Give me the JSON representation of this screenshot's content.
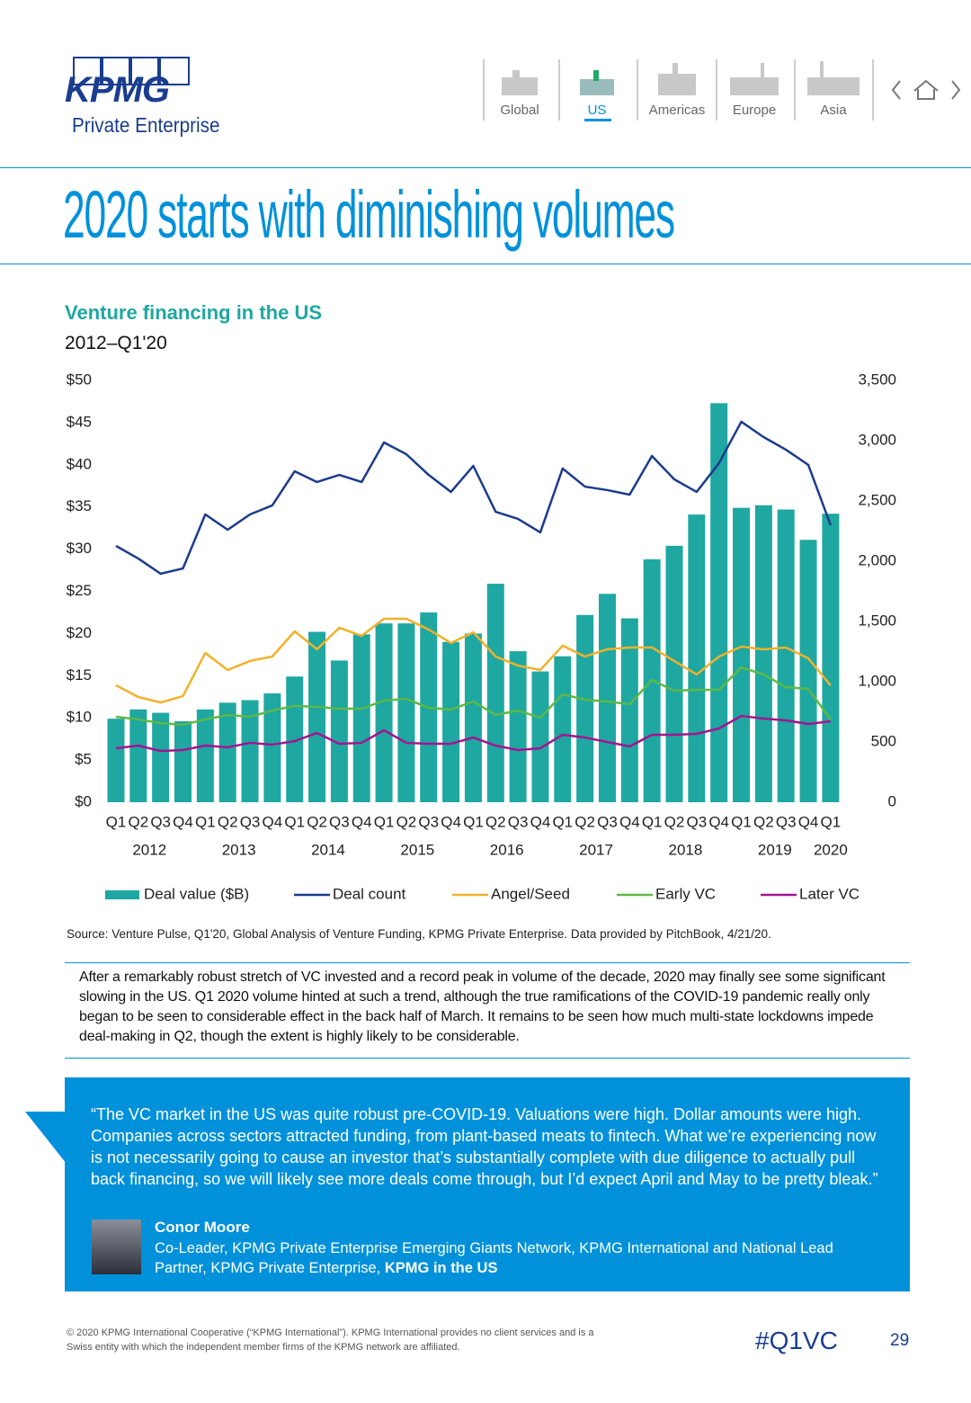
{
  "header": {
    "logo": "KPMG",
    "logo_subtitle": "Private Enterprise",
    "nav": [
      "Global",
      "US",
      "Americas",
      "Europe",
      "Asia"
    ]
  },
  "title": "2020 starts with diminishing volumes",
  "chart_data": {
    "type": "bar",
    "title": "Venture financing in the US",
    "subtitle": "2012–Q1'20",
    "categories": [
      "Q1",
      "Q2",
      "Q3",
      "Q4",
      "Q1",
      "Q2",
      "Q3",
      "Q4",
      "Q1",
      "Q2",
      "Q3",
      "Q4",
      "Q1",
      "Q2",
      "Q3",
      "Q4",
      "Q1",
      "Q2",
      "Q3",
      "Q4",
      "Q1",
      "Q2",
      "Q3",
      "Q4",
      "Q1",
      "Q2",
      "Q3",
      "Q4",
      "Q1",
      "Q2",
      "Q3",
      "Q4",
      "Q1"
    ],
    "year_labels": [
      "2012",
      "2013",
      "2014",
      "2015",
      "2016",
      "2017",
      "2018",
      "2019",
      "2020"
    ],
    "ylim": [
      0,
      50
    ],
    "yticks": [
      {
        "value": 0,
        "label": "$0"
      },
      {
        "value": 5,
        "label": "$5"
      },
      {
        "value": 10,
        "label": "$10"
      },
      {
        "value": 15,
        "label": "$15"
      },
      {
        "value": 20,
        "label": "$20"
      },
      {
        "value": 25,
        "label": "$25"
      },
      {
        "value": 30,
        "label": "$30"
      },
      {
        "value": 35,
        "label": "$35"
      },
      {
        "value": 40,
        "label": "$40"
      },
      {
        "value": 45,
        "label": "$45"
      },
      {
        "value": 50,
        "label": "$50"
      }
    ],
    "y2lim": [
      0,
      3500
    ],
    "y2ticks": [
      0,
      500,
      {
        "value": 1000,
        "label": "1,000"
      },
      {
        "value": 1500,
        "label": "1,500"
      },
      {
        "value": 2000,
        "label": "2,000"
      },
      {
        "value": 2500,
        "label": "2,500"
      },
      {
        "value": 3000,
        "label": "3,000"
      },
      {
        "value": 3500,
        "label": "3,500"
      }
    ],
    "grid": false,
    "series": [
      {
        "name": "Deal value ($B)",
        "type": "bar",
        "color": "#1fa7a2",
        "values": [
          9.9,
          11.0,
          10.6,
          9.6,
          11.0,
          11.8,
          12.1,
          12.9,
          14.9,
          20.2,
          16.8,
          19.9,
          21.2,
          21.2,
          22.5,
          19.0,
          20.0,
          25.9,
          17.9,
          15.5,
          17.3,
          22.2,
          24.7,
          21.8,
          28.8,
          30.4,
          34.1,
          47.3,
          34.9,
          35.2,
          34.7,
          31.1,
          34.2
        ]
      },
      {
        "name": "Deal count",
        "type": "line",
        "axis": "y2",
        "color": "#1c3b8c",
        "values": [
          2127,
          2022,
          1896,
          1940,
          2388,
          2261,
          2388,
          2463,
          2746,
          2657,
          2716,
          2657,
          2985,
          2888,
          2716,
          2575,
          2791,
          2410,
          2351,
          2239,
          2769,
          2619,
          2590,
          2552,
          2873,
          2679,
          2575,
          2813,
          3157,
          3030,
          2925,
          2799,
          2299
        ]
      },
      {
        "name": "Angel/Seed",
        "type": "line",
        "axis": "y2",
        "color": "#f0b12a",
        "values": [
          970,
          873,
          828,
          881,
          1239,
          1097,
          1172,
          1209,
          1418,
          1269,
          1448,
          1381,
          1522,
          1522,
          1433,
          1321,
          1410,
          1209,
          1134,
          1097,
          1299,
          1209,
          1269,
          1284,
          1284,
          1172,
          1060,
          1209,
          1291,
          1269,
          1284,
          1194,
          970
        ]
      },
      {
        "name": "Early VC",
        "type": "line",
        "axis": "y2",
        "color": "#5db848",
        "values": [
          709,
          687,
          657,
          642,
          687,
          724,
          709,
          761,
          799,
          791,
          776,
          776,
          843,
          858,
          784,
          769,
          836,
          724,
          761,
          702,
          896,
          851,
          836,
          813,
          1015,
          925,
          933,
          933,
          1119,
          1060,
          955,
          940,
          687
        ]
      },
      {
        "name": "Later VC",
        "type": "line",
        "axis": "y2",
        "color": "#a3158f",
        "values": [
          448,
          470,
          425,
          433,
          470,
          455,
          493,
          478,
          507,
          575,
          485,
          493,
          597,
          493,
          485,
          485,
          537,
          470,
          433,
          448,
          560,
          537,
          500,
          463,
          560,
          560,
          567,
          612,
          716,
          694,
          679,
          649,
          672
        ]
      }
    ]
  },
  "source": "Source: Venture Pulse, Q1'20, Global Analysis of Venture Funding, KPMG Private Enterprise. Data provided by PitchBook, 4/21/20.",
  "body": "After a remarkably robust stretch of VC invested and a record peak in volume of the decade, 2020 may finally see some significant slowing in the US. Q1 2020 volume hinted at such a trend, although the true ramifications of the COVID-19 pandemic really only began to be seen to considerable effect in the back half of March. It remains to be seen how much multi-state lockdowns impede deal-making in Q2, though the extent is highly likely to be considerable.",
  "quote": {
    "text": "“The VC market in the US was quite robust pre-COVID-19. Valuations were high. Dollar amounts were high. Companies across sectors attracted funding, from plant-based meats to fintech. What we’re experiencing now is not necessarily going to cause an investor that’s substantially complete with due diligence to actually pull back financing, so we will likely see more deals come through, but I’d expect April and May to be pretty bleak.”",
    "name": "Conor Moore",
    "role": "Co-Leader, KPMG Private Enterprise Emerging Giants Network, KPMG International and National Lead Partner, KPMG Private Enterprise,",
    "role_org": "KPMG in the US"
  },
  "footer": {
    "copyright": "© 2020 KPMG International Cooperative (“KPMG International”). KPMG International provides no client services and is a Swiss entity with which the independent member firms of the KPMG network are affiliated.",
    "hashtag": "#Q1VC",
    "page": "29"
  }
}
